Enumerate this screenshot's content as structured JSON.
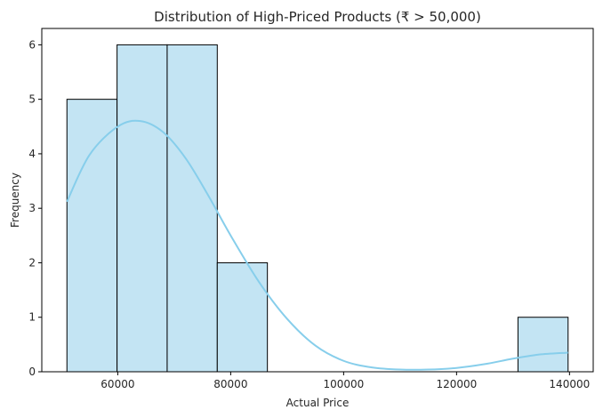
{
  "chart_data": {
    "type": "bar",
    "title": "Distribution of High-Priced Products (₹ > 50,000)",
    "xlabel": "Actual Price",
    "ylabel": "Frequency",
    "bins": [
      {
        "start": 51000,
        "end": 59875,
        "count": 5
      },
      {
        "start": 59875,
        "end": 68750,
        "count": 6
      },
      {
        "start": 68750,
        "end": 77625,
        "count": 6
      },
      {
        "start": 77625,
        "end": 86500,
        "count": 2
      },
      {
        "start": 86500,
        "end": 95375,
        "count": 0
      },
      {
        "start": 95375,
        "end": 104250,
        "count": 0
      },
      {
        "start": 104250,
        "end": 113125,
        "count": 0
      },
      {
        "start": 113125,
        "end": 122000,
        "count": 0
      },
      {
        "start": 122000,
        "end": 130875,
        "count": 0
      },
      {
        "start": 130875,
        "end": 139750,
        "count": 1
      }
    ],
    "kde": {
      "x": [
        51000,
        55000,
        60000,
        64000,
        68000,
        72000,
        76000,
        80000,
        85000,
        90000,
        95000,
        100000,
        105000,
        110000,
        115000,
        120000,
        125000,
        130000,
        135000,
        139750
      ],
      "y": [
        3.12,
        3.98,
        4.5,
        4.6,
        4.4,
        3.92,
        3.24,
        2.5,
        1.65,
        0.97,
        0.48,
        0.2,
        0.08,
        0.04,
        0.04,
        0.07,
        0.14,
        0.24,
        0.32,
        0.35
      ]
    },
    "xticks": [
      60000,
      80000,
      100000,
      120000,
      140000
    ],
    "yticks": [
      0,
      1,
      2,
      3,
      4,
      5,
      6
    ],
    "xlim": [
      46550,
      144200
    ],
    "ylim": [
      0,
      6.3
    ],
    "bar_color": "#c3e4f3",
    "bar_edge_color": "#000000",
    "kde_color": "#87ceeb",
    "grid": false,
    "legend": "none"
  }
}
